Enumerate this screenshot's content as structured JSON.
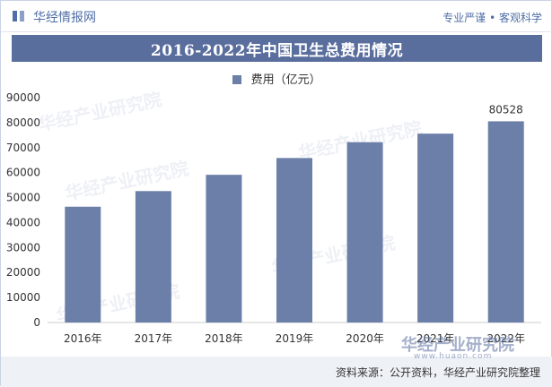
{
  "header": {
    "logo_text": "华经情报网",
    "tagline": "专业严谨 • 客观科学"
  },
  "watermark": {
    "text": "华经产业研究院",
    "url": "www.huaon.com"
  },
  "footer": {
    "source": "资料来源：公开资料，华经产业研究院整理"
  },
  "colors": {
    "header_accent": "#4f6ea7",
    "title_bar": "#5a6e9e",
    "bar": "#6c7fa8"
  },
  "chart_data": {
    "type": "bar",
    "title": "2016-2022年中国卫生总费用情况",
    "categories": [
      "2016年",
      "2017年",
      "2018年",
      "2019年",
      "2020年",
      "2021年",
      "2022年"
    ],
    "series": [
      {
        "name": "费用（亿元）",
        "values": [
          46345,
          52598,
          59122,
          65841,
          72175,
          75593,
          80528
        ]
      }
    ],
    "data_labels": [
      {
        "category": "2022年",
        "text": "80528"
      }
    ],
    "yticks": [
      0,
      10000,
      20000,
      30000,
      40000,
      50000,
      60000,
      70000,
      80000,
      90000
    ],
    "ylim": [
      0,
      90000
    ],
    "grid": false,
    "legend": "top-center",
    "xlabel": "",
    "ylabel": ""
  }
}
